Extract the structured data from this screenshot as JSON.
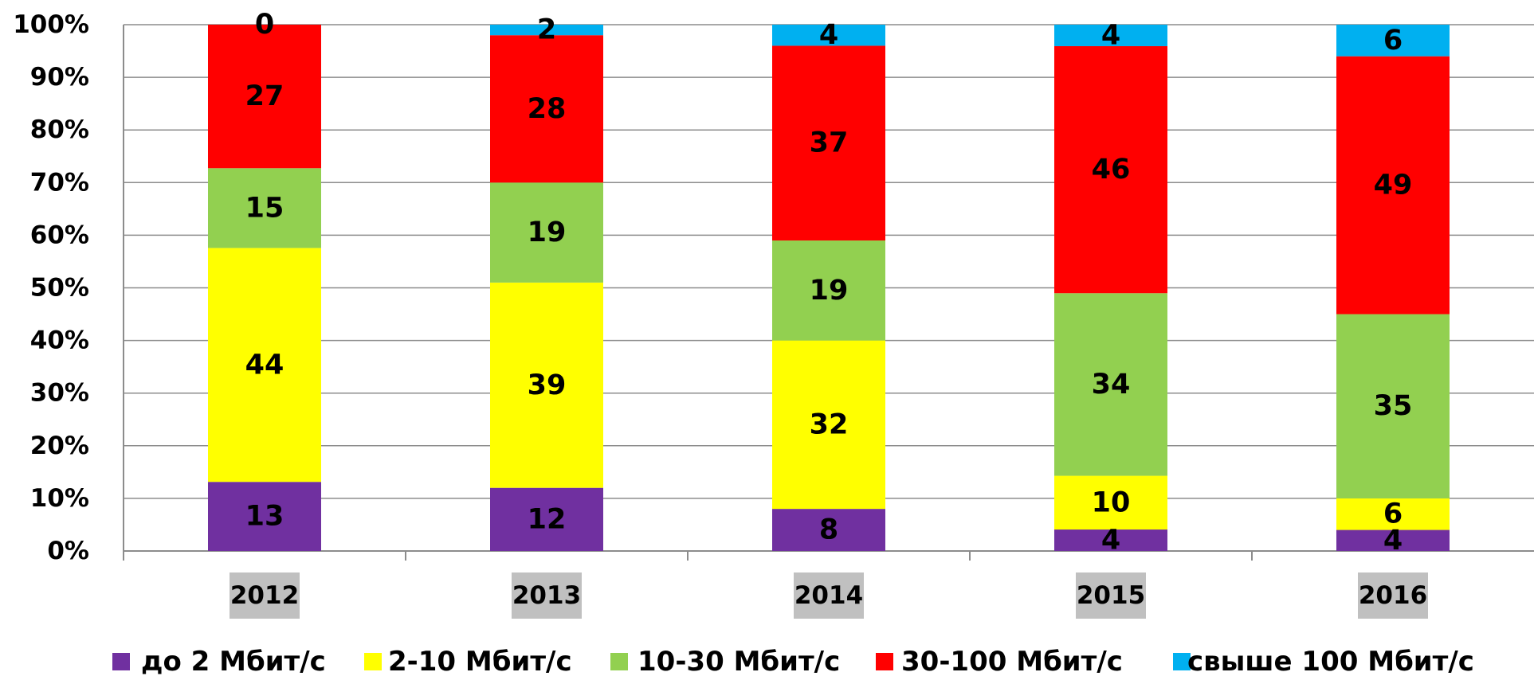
{
  "chart_data": {
    "type": "bar",
    "stacked": "percent",
    "categories": [
      "2012",
      "2013",
      "2014",
      "2015",
      "2016"
    ],
    "series": [
      {
        "name": "до 2 Мбит/с",
        "color": "#7030A0",
        "values": [
          13,
          12,
          8,
          4,
          4
        ]
      },
      {
        "name": "2-10 Мбит/с",
        "color": "#FFFF00",
        "values": [
          44,
          39,
          32,
          10,
          6
        ]
      },
      {
        "name": "10-30 Мбит/с",
        "color": "#92D050",
        "values": [
          15,
          19,
          19,
          34,
          35
        ]
      },
      {
        "name": "30-100 Мбит/с",
        "color": "#FF0000",
        "values": [
          27,
          28,
          37,
          46,
          49
        ]
      },
      {
        "name": "свыше 100 Мбит/с",
        "color": "#00B0F0",
        "values": [
          0,
          2,
          4,
          4,
          6
        ]
      }
    ],
    "y_ticks": [
      "0%",
      "10%",
      "20%",
      "30%",
      "40%",
      "50%",
      "60%",
      "70%",
      "80%",
      "90%",
      "100%"
    ],
    "ylim": [
      0,
      100
    ],
    "grid": true,
    "legend_position": "bottom",
    "category_label_background": "#C0C0C0",
    "title": "",
    "xlabel": "",
    "ylabel": ""
  }
}
